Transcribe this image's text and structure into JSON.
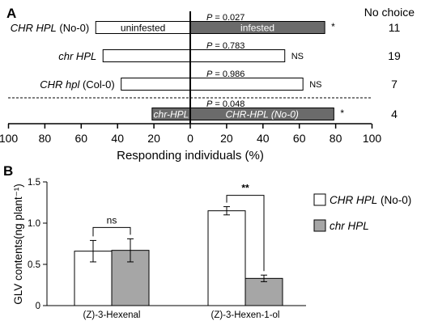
{
  "colors": {
    "dark_bar": "#6b6b6b",
    "light_bar": "#a6a6a6",
    "open_bar": "#ffffff",
    "outline": "#000000",
    "label_on_dark": "#ffffff"
  },
  "chart_data": [
    {
      "type": "bar",
      "panel_label": "A",
      "orientation": "horizontal-diverging",
      "xlabel": "Responding individuals (%)",
      "xlim": [
        -100,
        100
      ],
      "tick_labels": [
        "100",
        "80",
        "60",
        "40",
        "20",
        "0",
        "20",
        "40",
        "60",
        "80",
        "100"
      ],
      "no_choice_header": "No choice",
      "rows": [
        {
          "label_parts": [
            {
              "text": "CHR HPL",
              "italic": true
            },
            {
              "text": " (No-0)",
              "italic": false
            }
          ],
          "left": 52,
          "right": 74,
          "p_text": "P = 0.027",
          "sig": "*",
          "no_choice": "11",
          "left_label": "uninfested",
          "right_label": "infested",
          "style": "open-dark"
        },
        {
          "label_parts": [
            {
              "text": "chr HPL",
              "italic": true
            }
          ],
          "left": 48,
          "right": 52,
          "p_text": "P = 0.783",
          "sig": "NS",
          "no_choice": "19",
          "left_label": "",
          "right_label": "",
          "style": "open-open"
        },
        {
          "label_parts": [
            {
              "text": "CHR hpl",
              "italic": true
            },
            {
              "text": " (Col-0)",
              "italic": false
            }
          ],
          "left": 38,
          "right": 62,
          "p_text": "P = 0.986",
          "sig": "NS",
          "no_choice": "7",
          "left_label": "",
          "right_label": "",
          "style": "open-open"
        },
        {
          "label_parts": [],
          "left": 21,
          "right": 79,
          "p_text": "P = 0.048",
          "sig": "*",
          "no_choice": "4",
          "left_label": "chr-HPL",
          "right_label": "CHR-HPL (No-0)",
          "style": "dark-dark"
        }
      ]
    },
    {
      "type": "bar",
      "panel_label": "B",
      "ylabel": "GLV contents(ng plant⁻¹)",
      "ylim": [
        0,
        1.5
      ],
      "yticks": [
        "0",
        "0.5",
        "1.0",
        "1.5"
      ],
      "categories": [
        "(Z)-3-Hexenal",
        "(Z)-3-Hexen-1-ol"
      ],
      "series": [
        {
          "name_parts": [
            {
              "text": "CHR HPL",
              "italic": true
            },
            {
              "text": " (No-0)",
              "italic": false
            }
          ],
          "values": [
            0.66,
            1.15
          ],
          "errors": [
            0.13,
            0.05
          ],
          "style": "open"
        },
        {
          "name_parts": [
            {
              "text": "chr HPL",
              "italic": true
            }
          ],
          "values": [
            0.67,
            0.33
          ],
          "errors": [
            0.14,
            0.04
          ],
          "style": "grey"
        }
      ],
      "annotations": [
        {
          "category_index": 0,
          "text": "ns"
        },
        {
          "category_index": 1,
          "text": "**"
        }
      ]
    }
  ]
}
